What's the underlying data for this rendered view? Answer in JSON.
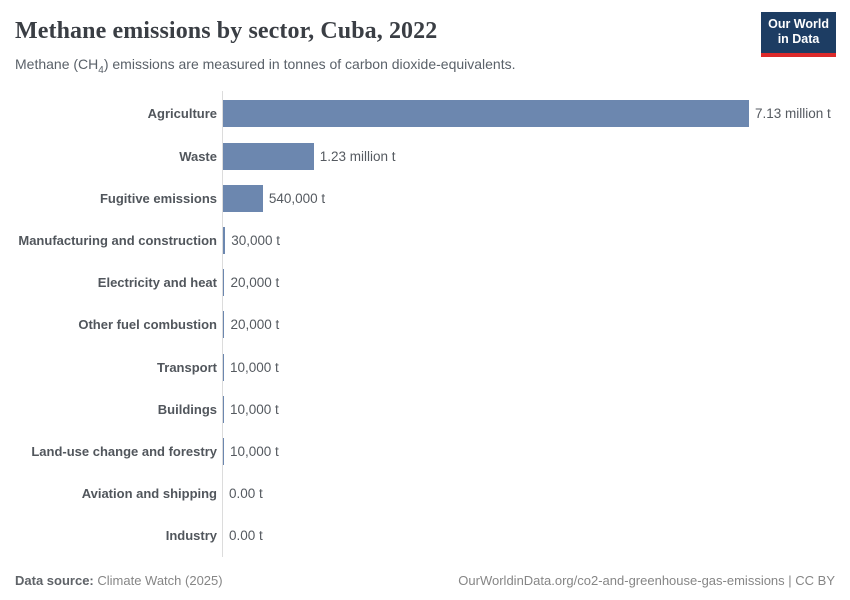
{
  "header": {
    "title": "Methane emissions by sector, Cuba, 2022",
    "subtitle_prefix": "Methane (CH",
    "subtitle_sub": "4",
    "subtitle_suffix": ") emissions are measured in tonnes of carbon dioxide-equivalents.",
    "logo_line1": "Our World",
    "logo_line2": "in Data"
  },
  "chart_data": {
    "type": "bar",
    "orientation": "horizontal",
    "title": "Methane emissions by sector, Cuba, 2022",
    "unit": "t",
    "categories": [
      "Agriculture",
      "Waste",
      "Fugitive emissions",
      "Manufacturing and construction",
      "Electricity and heat",
      "Other fuel combustion",
      "Transport",
      "Buildings",
      "Land-use change and forestry",
      "Aviation and shipping",
      "Industry"
    ],
    "values": [
      7130000,
      1230000,
      540000,
      30000,
      20000,
      20000,
      10000,
      10000,
      10000,
      0,
      0
    ],
    "value_labels": [
      "7.13 million t",
      "1.23 million t",
      "540,000 t",
      "30,000 t",
      "20,000 t",
      "20,000 t",
      "10,000 t",
      "10,000 t",
      "10,000 t",
      "0.00 t",
      "0.00 t"
    ],
    "xlim": [
      0,
      7130000
    ],
    "grid": false,
    "legend": "none",
    "bar_color": "#6c87af",
    "axis_color": "#dcdcdc"
  },
  "footer": {
    "source_label": "Data source:",
    "source_value": " Climate Watch (2025)",
    "link": "OurWorldinData.org/co2-and-greenhouse-gas-emissions | CC BY"
  },
  "colors": {
    "bar": "#6c87af",
    "logo_background": "#1d3d63",
    "logo_underline": "#dc2a2a",
    "title_text": "#3a3e44",
    "subtitle_text": "#5a6169"
  }
}
